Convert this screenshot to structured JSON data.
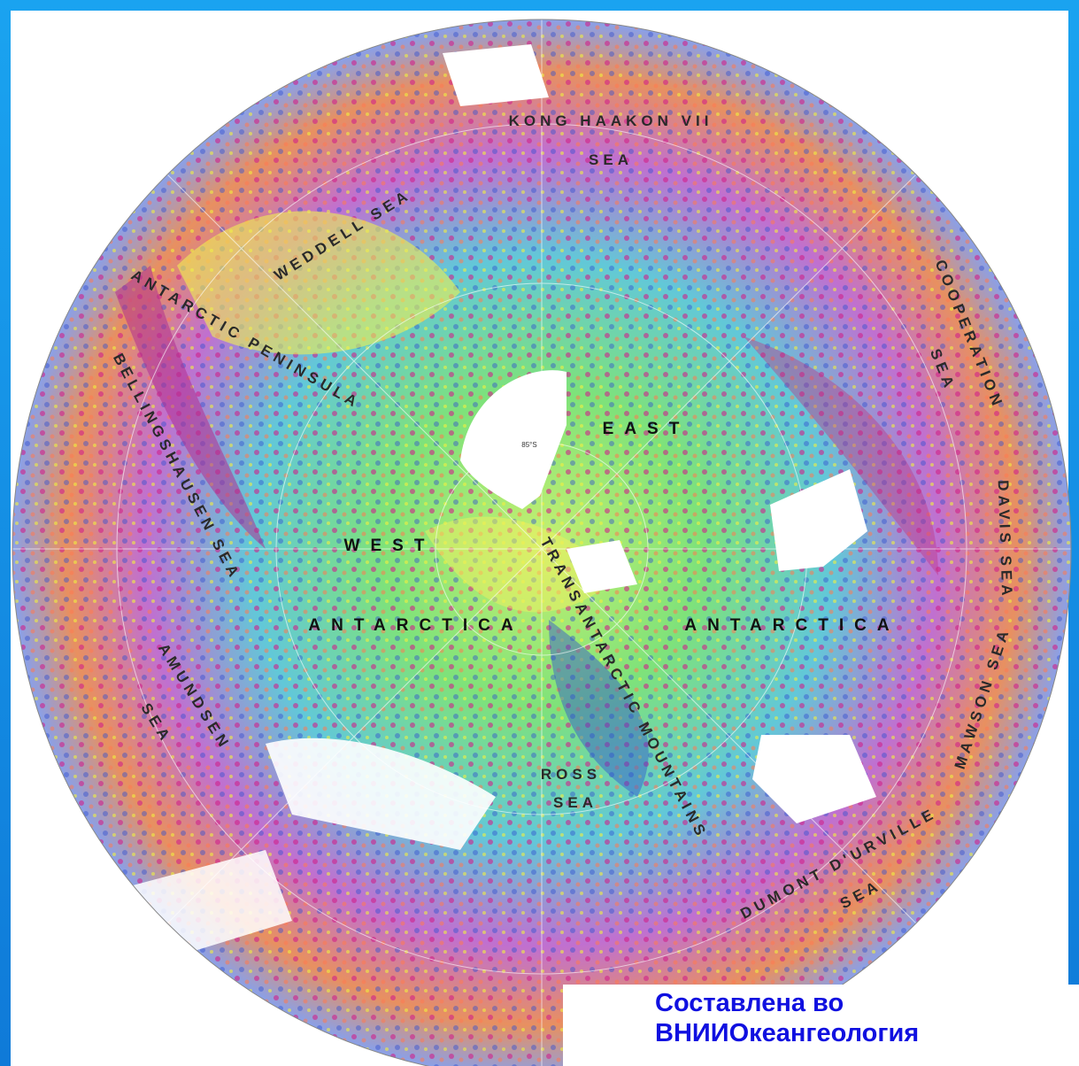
{
  "map": {
    "labels": [
      "KONG HAAKON VII",
      "SEA",
      "WEDDELL SEA",
      "ANTARCTIC PENINSULA",
      "BELLINGSHAUSEN SEA",
      "EAST",
      "WEST",
      "ANTARCTICA",
      "ANTARCTICA",
      "AMUNDSEN",
      "SEA",
      "ROSS",
      "SEA",
      "TRANSANTARCTIC MOUNTAINS",
      "DUMONT D'URVILLE",
      "SEA",
      "COOPERATION",
      "SEA",
      "DAVIS SEA",
      "MAWSON SEA",
      "85°S"
    ]
  },
  "caption": {
    "lines": [
      "Составлена во",
      "ВНИИОкеангеология"
    ]
  }
}
